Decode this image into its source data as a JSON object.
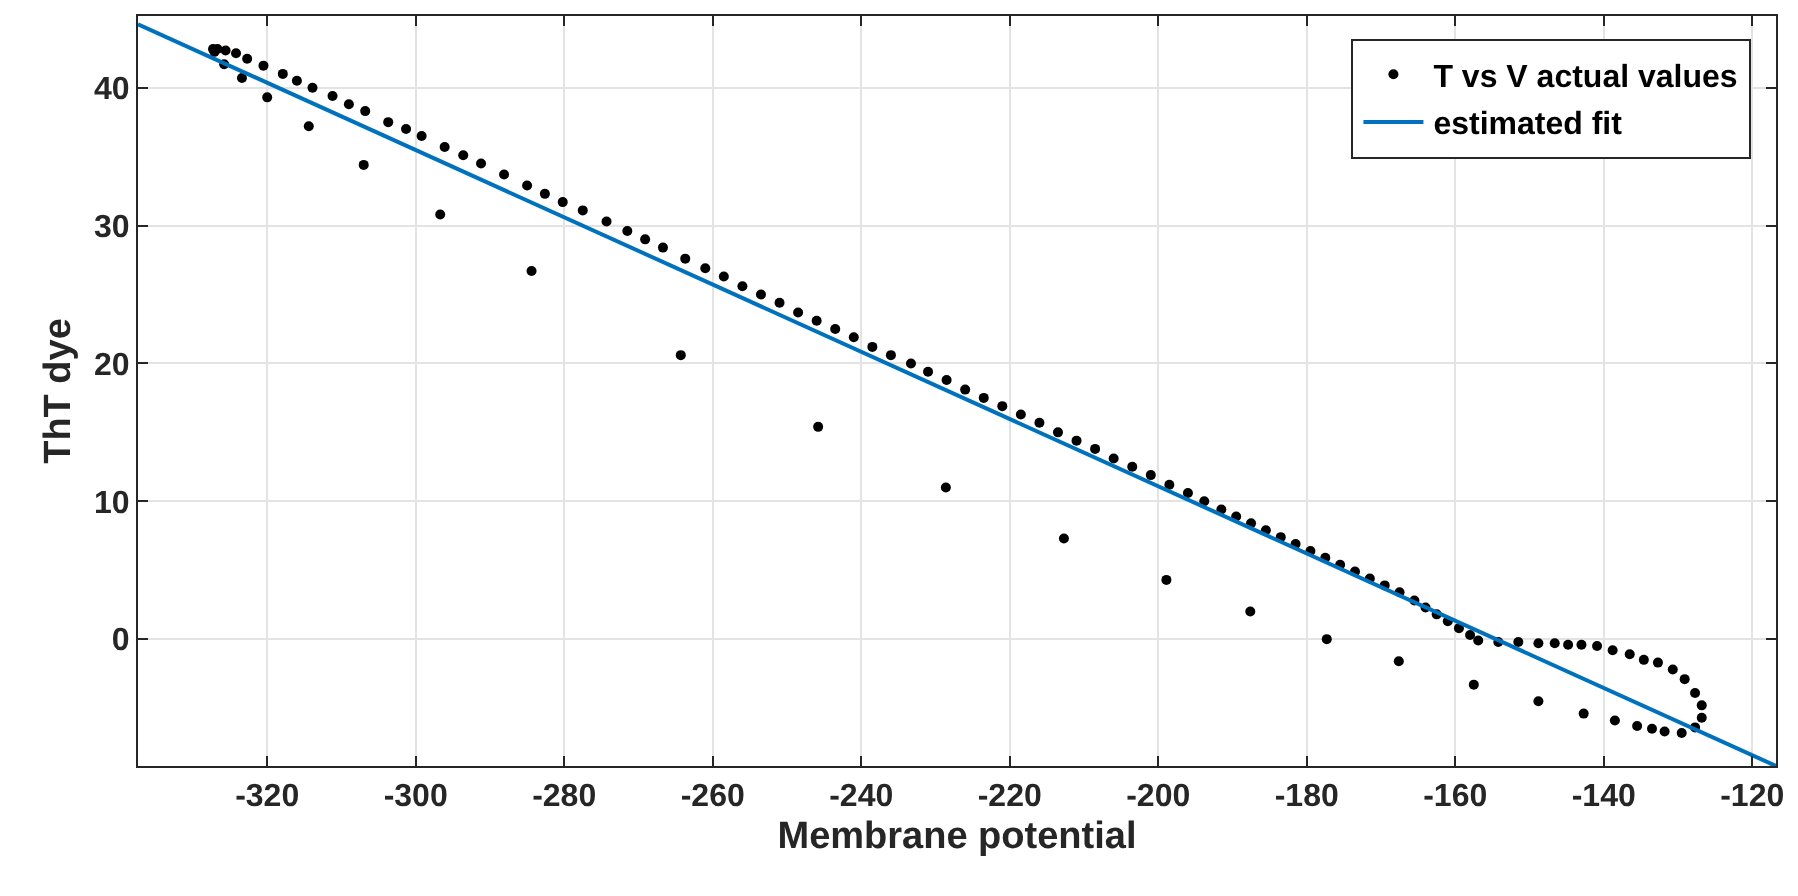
{
  "chart_data": {
    "type": "scatter",
    "xlabel": "Membrane potential",
    "ylabel": "ThT dye",
    "xlim": [
      -337.4,
      -116.8
    ],
    "ylim": [
      -9.2,
      45.2
    ],
    "xticks": [
      -320,
      -300,
      -280,
      -260,
      -240,
      -220,
      -200,
      -180,
      -160,
      -140,
      -120
    ],
    "yticks": [
      0,
      10,
      20,
      30,
      40
    ],
    "grid": true,
    "legend": "top right",
    "series": [
      {
        "name": "T vs V actual values",
        "marker": "circle",
        "color": "#000000",
        "x": [
          -327.3,
          -326.7,
          -325.6,
          -324.2,
          -322.7,
          -320.5,
          -317.9,
          -316.0,
          -313.9,
          -311.2,
          -309.0,
          -306.8,
          -303.7,
          -301.3,
          -299.2,
          -296.1,
          -293.6,
          -291.2,
          -288.1,
          -285.0,
          -282.6,
          -280.2,
          -277.5,
          -274.3,
          -271.5,
          -269.1,
          -266.7,
          -263.7,
          -261.0,
          -258.5,
          -256,
          -253.5,
          -251,
          -248.5,
          -246,
          -243.5,
          -241,
          -238.5,
          -236,
          -233.3,
          -231,
          -228.5,
          -226,
          -223.5,
          -221,
          -218.5,
          -216,
          -213.5,
          -211,
          -208.5,
          -206,
          -203.5,
          -201,
          -198.5,
          -196,
          -193.8,
          -191.5,
          -189.5,
          -187.5,
          -185.5,
          -183.5,
          -181.5,
          -179.5,
          -177.5,
          -175.5,
          -173.5,
          -171.5,
          -169.5,
          -167.5,
          -165.5,
          -164,
          -162.5,
          -161,
          -159.5,
          -158,
          -156.9,
          -154.2,
          -151.5,
          -148.8,
          -146.6,
          -144.8,
          -143.0,
          -140.9,
          -138.8,
          -136.5,
          -134.6,
          -132.7,
          -130.7,
          -129.1,
          -127.7,
          -126.8,
          -126.8,
          -127.7,
          -129.5,
          -131.8,
          -133.5,
          -135.5,
          -138.5,
          -142.7,
          -148.8,
          -157.5,
          -167.6,
          -177.3,
          -187.6,
          -198.9,
          -212.7,
          -228.6,
          -245.8,
          -264.3,
          -284.4,
          -296.7,
          -307.0,
          -314.4,
          -320.0,
          -323.4,
          -325.8,
          -327.1
        ],
        "values": [
          42.8,
          42.8,
          42.7,
          42.5,
          42.1,
          41.6,
          41.0,
          40.5,
          40.0,
          39.4,
          38.8,
          38.3,
          37.5,
          37.0,
          36.5,
          35.7,
          35.1,
          34.5,
          33.7,
          32.9,
          32.3,
          31.7,
          31.1,
          30.3,
          29.6,
          29.0,
          28.4,
          27.6,
          26.9,
          26.3,
          25.6,
          25.0,
          24.4,
          23.7,
          23.1,
          22.5,
          21.9,
          21.2,
          20.6,
          20.0,
          19.4,
          18.8,
          18.1,
          17.5,
          16.9,
          16.3,
          15.7,
          15.0,
          14.4,
          13.8,
          13.1,
          12.5,
          11.9,
          11.2,
          10.6,
          10.0,
          9.4,
          8.9,
          8.4,
          7.9,
          7.4,
          6.9,
          6.4,
          5.9,
          5.4,
          4.9,
          4.4,
          3.9,
          3.4,
          2.8,
          2.3,
          1.8,
          1.3,
          0.8,
          0.3,
          -0.1,
          -0.2,
          -0.2,
          -0.3,
          -0.3,
          -0.4,
          -0.4,
          -0.5,
          -0.8,
          -1.1,
          -1.5,
          -1.7,
          -2.2,
          -2.9,
          -3.9,
          -4.8,
          -5.7,
          -6.4,
          -6.8,
          -6.7,
          -6.5,
          -6.3,
          -5.9,
          -5.4,
          -4.5,
          -3.3,
          -1.6,
          0.0,
          2.0,
          4.3,
          7.3,
          11.0,
          15.4,
          20.6,
          26.7,
          30.8,
          34.4,
          37.2,
          39.3,
          40.7,
          41.7,
          42.6
        ]
      },
      {
        "name": "estimated fit",
        "type": "line",
        "color": "#0072bd",
        "line_style": "solid",
        "x": [
          -337.4,
          -116.8
        ],
        "values": [
          44.6,
          -9.2
        ]
      }
    ]
  }
}
